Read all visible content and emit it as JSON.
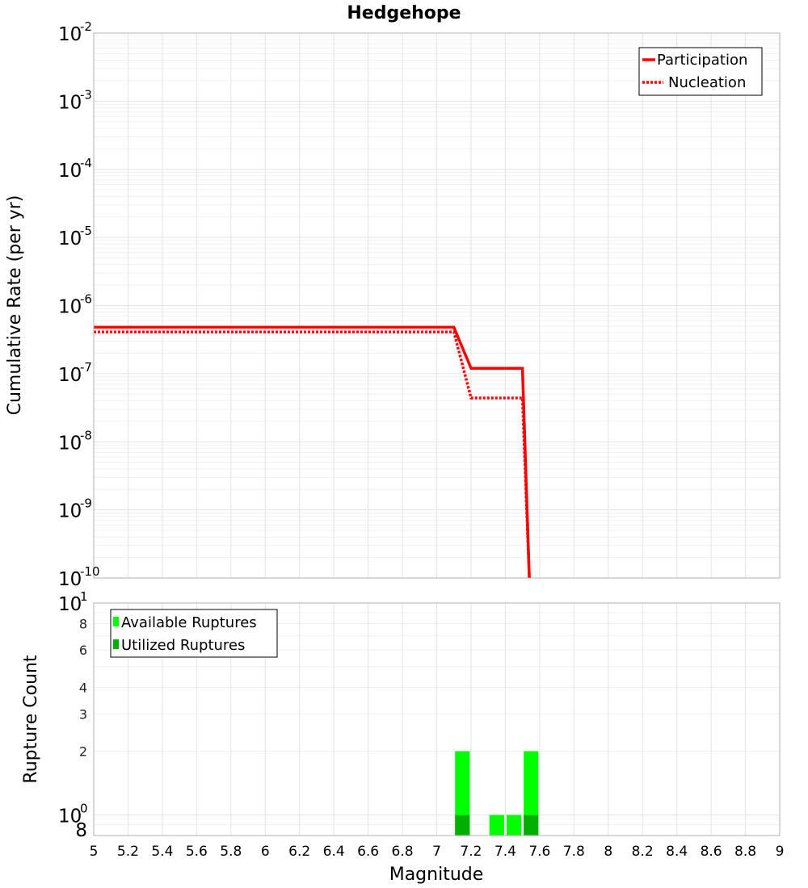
{
  "chart_data": [
    {
      "type": "line",
      "title": "Hedgehope",
      "xlabel": "Magnitude",
      "ylabel": "Cumulative Rate (per yr)",
      "y_scale": "log",
      "xlim": [
        5,
        9
      ],
      "ylim": [
        1e-10,
        0.01
      ],
      "y_ticks": [
        {
          "base": "10",
          "exp": "-10",
          "value": 1e-10
        },
        {
          "base": "10",
          "exp": "-9",
          "value": 1e-09
        },
        {
          "base": "10",
          "exp": "-8",
          "value": 1e-08
        },
        {
          "base": "10",
          "exp": "-7",
          "value": 1e-07
        },
        {
          "base": "10",
          "exp": "-6",
          "value": 1e-06
        },
        {
          "base": "10",
          "exp": "-5",
          "value": 1e-05
        },
        {
          "base": "10",
          "exp": "-4",
          "value": 0.0001
        },
        {
          "base": "10",
          "exp": "-3",
          "value": 0.001
        },
        {
          "base": "10",
          "exp": "-2",
          "value": 0.01
        }
      ],
      "grid": true,
      "legend_position": "top-right",
      "series": [
        {
          "name": "Participation",
          "style": "solid",
          "color": "#ff0000",
          "x": [
            5.0,
            7.1,
            7.2,
            7.5,
            7.54
          ],
          "y": [
            4.8e-07,
            4.8e-07,
            1.2e-07,
            1.2e-07,
            1e-10
          ]
        },
        {
          "name": "Nucleation",
          "style": "dotted",
          "color": "#ff0000",
          "x": [
            5.0,
            7.1,
            7.2,
            7.5,
            7.54
          ],
          "y": [
            4.1e-07,
            4.1e-07,
            4.4e-08,
            4.4e-08,
            1e-10
          ]
        }
      ]
    },
    {
      "type": "bar",
      "ylabel": "Rupture Count",
      "y_scale": "log",
      "xlim": [
        5,
        9
      ],
      "ylim": [
        0.8,
        10
      ],
      "x_ticks": [
        "5",
        "5.2",
        "5.4",
        "5.6",
        "5.8",
        "6",
        "6.2",
        "6.4",
        "6.6",
        "6.8",
        "7",
        "7.2",
        "7.4",
        "7.6",
        "7.8",
        "8",
        "8.2",
        "8.4",
        "8.6",
        "8.8",
        "9"
      ],
      "y_major_ticks": [
        {
          "base": "10",
          "exp": "0",
          "value": 1
        },
        {
          "base": "10",
          "exp": "1",
          "value": 10
        }
      ],
      "y_minor_ticks": [
        {
          "label": "8",
          "value": 0.8
        },
        {
          "label": "2",
          "value": 2
        },
        {
          "label": "3",
          "value": 3
        },
        {
          "label": "4",
          "value": 4
        },
        {
          "label": "6",
          "value": 6
        },
        {
          "label": "8",
          "value": 8
        }
      ],
      "grid": true,
      "legend_position": "top-left",
      "bin_width": 0.1,
      "series": [
        {
          "name": "Available Ruptures",
          "color": "#00ff00",
          "x": [
            7.15,
            7.35,
            7.45,
            7.55
          ],
          "values": [
            2,
            1,
            1,
            2
          ]
        },
        {
          "name": "Utilized Ruptures",
          "color": "#00b000",
          "x": [
            7.15,
            7.55
          ],
          "values": [
            1,
            1
          ]
        }
      ]
    }
  ]
}
